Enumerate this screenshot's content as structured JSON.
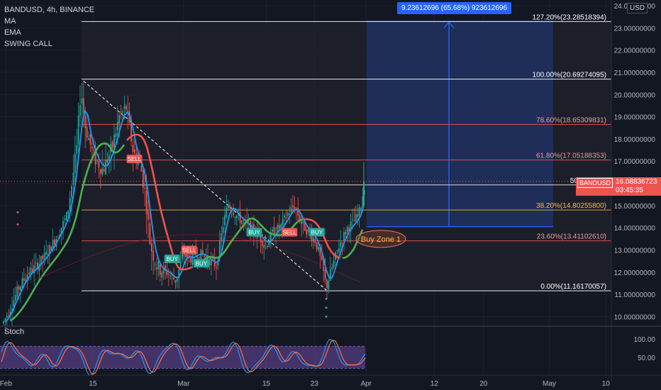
{
  "header": {
    "symbol_line": "BANDUSD, 4h, BINANCE",
    "indicators": [
      "MA",
      "EMA",
      "SWING CALL"
    ],
    "currency": "USD"
  },
  "measure_label": "9.23612696 (65.68%) 923612696",
  "current_price": {
    "symbol": "BANDUSD",
    "value": "16.08836723",
    "countdown": "03:45:35"
  },
  "zone_label": "Buy Zone 1",
  "oscillator": {
    "name": "Stoch",
    "ticks": [
      "100.00",
      "50.00"
    ]
  },
  "colors": {
    "background": "#131722",
    "fib_100": "#ffffff",
    "fib_786": "#ef5350",
    "fib_618": "#ef5350",
    "fib_382": "#ffa726",
    "fib_236": "#ef5350",
    "fib_0": "#ffffff",
    "ma_green": "#4caf50",
    "ema_blue": "#2196f3",
    "ma_red": "#ef5350",
    "measure": "#2962ff",
    "stoch_band": "#7e57c2"
  },
  "chart_data": {
    "type": "candlestick",
    "title": "BANDUSD, 4h, BINANCE",
    "ylabel": "USD",
    "ylim": [
      9.9,
      24.3
    ],
    "y_ticks": [
      "24.00000000",
      "23.00000000",
      "22.00000000",
      "21.00000000",
      "20.00000000",
      "19.00000000",
      "18.00000000",
      "17.00000000",
      "16.00000000",
      "15.00000000",
      "14.00000000",
      "13.00000000",
      "12.00000000",
      "11.00000000",
      "10.00000000"
    ],
    "x_ticks": [
      "Feb",
      "15",
      "Mar",
      "15",
      "23",
      "Apr",
      "12",
      "20",
      "May",
      "10"
    ],
    "fib_levels": [
      {
        "label": "127.20%(23.28518394)",
        "value": 23.28518394
      },
      {
        "label": "100.00%(20.69274095)",
        "value": 20.69274095
      },
      {
        "label": "78.60%(18.65309831)",
        "value": 18.65309831
      },
      {
        "label": "61.80%(17.05188353)",
        "value": 17.05188353
      },
      {
        "label": "50.00%(15.",
        "value": 15.93
      },
      {
        "label": "38.20%(14.80255800)",
        "value": 14.802558
      },
      {
        "label": "23.60%(13.41102610)",
        "value": 13.4110261
      },
      {
        "label": "0.00%(11.16170057)",
        "value": 11.16170057
      }
    ],
    "signals": [
      {
        "label": "SELL",
        "x": 0.215,
        "price": 17.1,
        "kind": "sell"
      },
      {
        "label": "BUY",
        "x": 0.277,
        "price": 12.6,
        "kind": "buy"
      },
      {
        "label": "SELL",
        "x": 0.305,
        "price": 13.0,
        "kind": "sell"
      },
      {
        "label": "BUY",
        "x": 0.325,
        "price": 12.4,
        "kind": "buy"
      },
      {
        "label": "BUY",
        "x": 0.412,
        "price": 13.8,
        "kind": "buy"
      },
      {
        "label": "SELL",
        "x": 0.47,
        "price": 13.8,
        "kind": "sell"
      },
      {
        "label": "BUY",
        "x": 0.515,
        "price": 13.8,
        "kind": "buy"
      }
    ],
    "last_price": 16.08836723,
    "stoch_range": [
      0,
      100
    ]
  }
}
